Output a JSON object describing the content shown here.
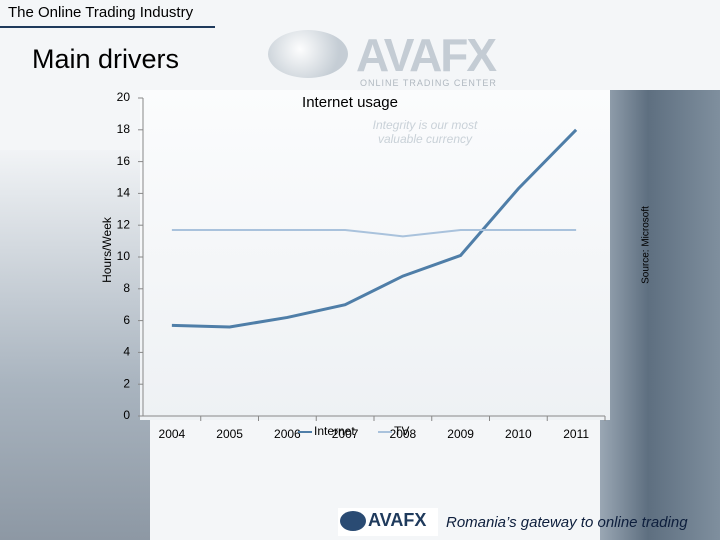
{
  "header": {
    "title": "The Online Trading Industry"
  },
  "heading": "Main drivers",
  "logo": {
    "name": "AVAFX",
    "subtitle": "ONLINE TRADING CENTER",
    "tagline": "Integrity is our most valuable currency"
  },
  "footer": {
    "logo": "AVAFX",
    "tagline": "Romania’s gateway to online trading"
  },
  "chart_data": {
    "type": "line",
    "title": "Internet usage",
    "y_label": "Hours/Week",
    "source": "Source: Microsoft",
    "categories": [
      "2004",
      "2005",
      "2006",
      "2007",
      "2008",
      "2009",
      "2010",
      "2011"
    ],
    "series": [
      {
        "name": "Internet",
        "color": "#4f7ea8",
        "values": [
          5.7,
          5.6,
          6.2,
          7.0,
          8.8,
          10.1,
          14.3,
          18.0
        ]
      },
      {
        "name": "TV",
        "color": "#a9c2dc",
        "values": [
          11.7,
          11.7,
          11.7,
          11.7,
          11.3,
          11.7,
          11.7,
          11.7
        ]
      }
    ],
    "ylim": [
      0,
      20
    ],
    "yticks": [
      0,
      2,
      4,
      6,
      8,
      10,
      12,
      14,
      16,
      18,
      20
    ],
    "grid": false,
    "legend": "bottom"
  }
}
